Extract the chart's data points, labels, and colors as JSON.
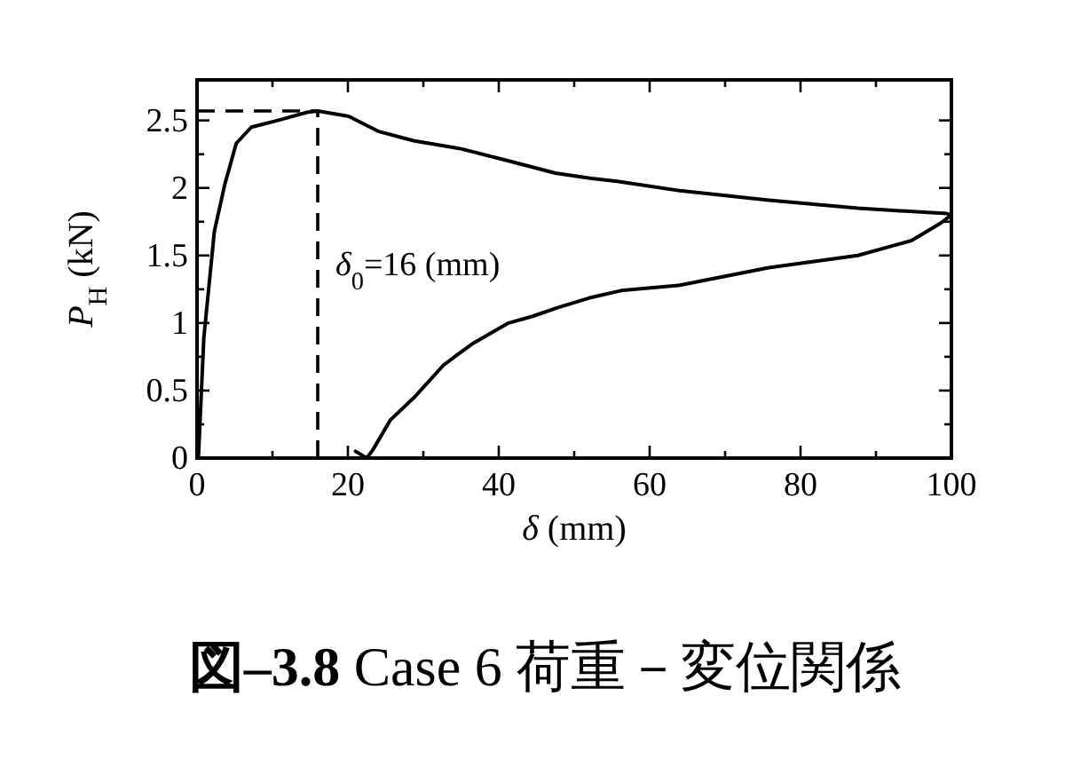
{
  "chart_data": {
    "type": "line",
    "title": "**図–3.8** Case 6 荷重－変位関係",
    "xlabel": "*δ* (mm)",
    "ylabel": "*P*$_{H}$ (kN)",
    "xlim": [
      0,
      100
    ],
    "ylim": [
      0,
      2.8
    ],
    "xticks": [
      0,
      {
        "value": 10,
        "label": null
      },
      20,
      {
        "value": 30,
        "label": null
      },
      40,
      {
        "value": 50,
        "label": null
      },
      60,
      {
        "value": 70,
        "label": null
      },
      80,
      {
        "value": 90,
        "label": null
      },
      100
    ],
    "yticks": [
      0,
      {
        "value": 0.25,
        "label": null
      },
      0.5,
      {
        "value": 0.75,
        "label": null
      },
      1,
      {
        "value": 1.25,
        "label": null
      },
      1.5,
      {
        "value": 1.75,
        "label": null
      },
      2,
      {
        "value": 2.25,
        "label": null
      },
      2.5
    ],
    "series": [
      {
        "color": "#000000",
        "x": [
          0,
          0.2,
          0.9,
          2.3,
          3.7,
          5.2,
          7.2,
          10.7,
          14.6,
          16,
          20.1,
          24,
          28.7,
          35,
          41.3,
          47.5,
          52.3,
          55.5,
          64,
          75.8,
          87.6,
          99.4,
          100,
          98.6,
          94.7,
          87.6,
          75.8,
          64,
          56.2,
          52.3,
          47.6,
          44.5,
          41.3,
          36.6,
          32.7,
          28.8,
          25.6,
          23.3,
          22.5,
          21,
          22.5
        ],
        "values": [
          0,
          0.02,
          0.89,
          1.68,
          2.03,
          2.33,
          2.45,
          2.5,
          2.56,
          2.57,
          2.53,
          2.42,
          2.35,
          2.29,
          2.2,
          2.11,
          2.07,
          2.05,
          1.98,
          1.91,
          1.85,
          1.81,
          1.8,
          1.74,
          1.61,
          1.5,
          1.41,
          1.28,
          1.24,
          1.19,
          1.11,
          1.05,
          1,
          0.85,
          0.69,
          0.45,
          0.28,
          0.06,
          0,
          0.05,
          0
        ]
      }
    ],
    "ref_lines": [
      {
        "axis": "x",
        "value": 16,
        "label": "*δ*$_{0}$=16 (mm)",
        "line_style": "dashed",
        "color": "#000000"
      },
      {
        "axis": "y",
        "value": 2.57,
        "line_style": "dashed",
        "color": "#000000"
      }
    ],
    "grid": false,
    "marker": "none",
    "line_style": "solid"
  }
}
